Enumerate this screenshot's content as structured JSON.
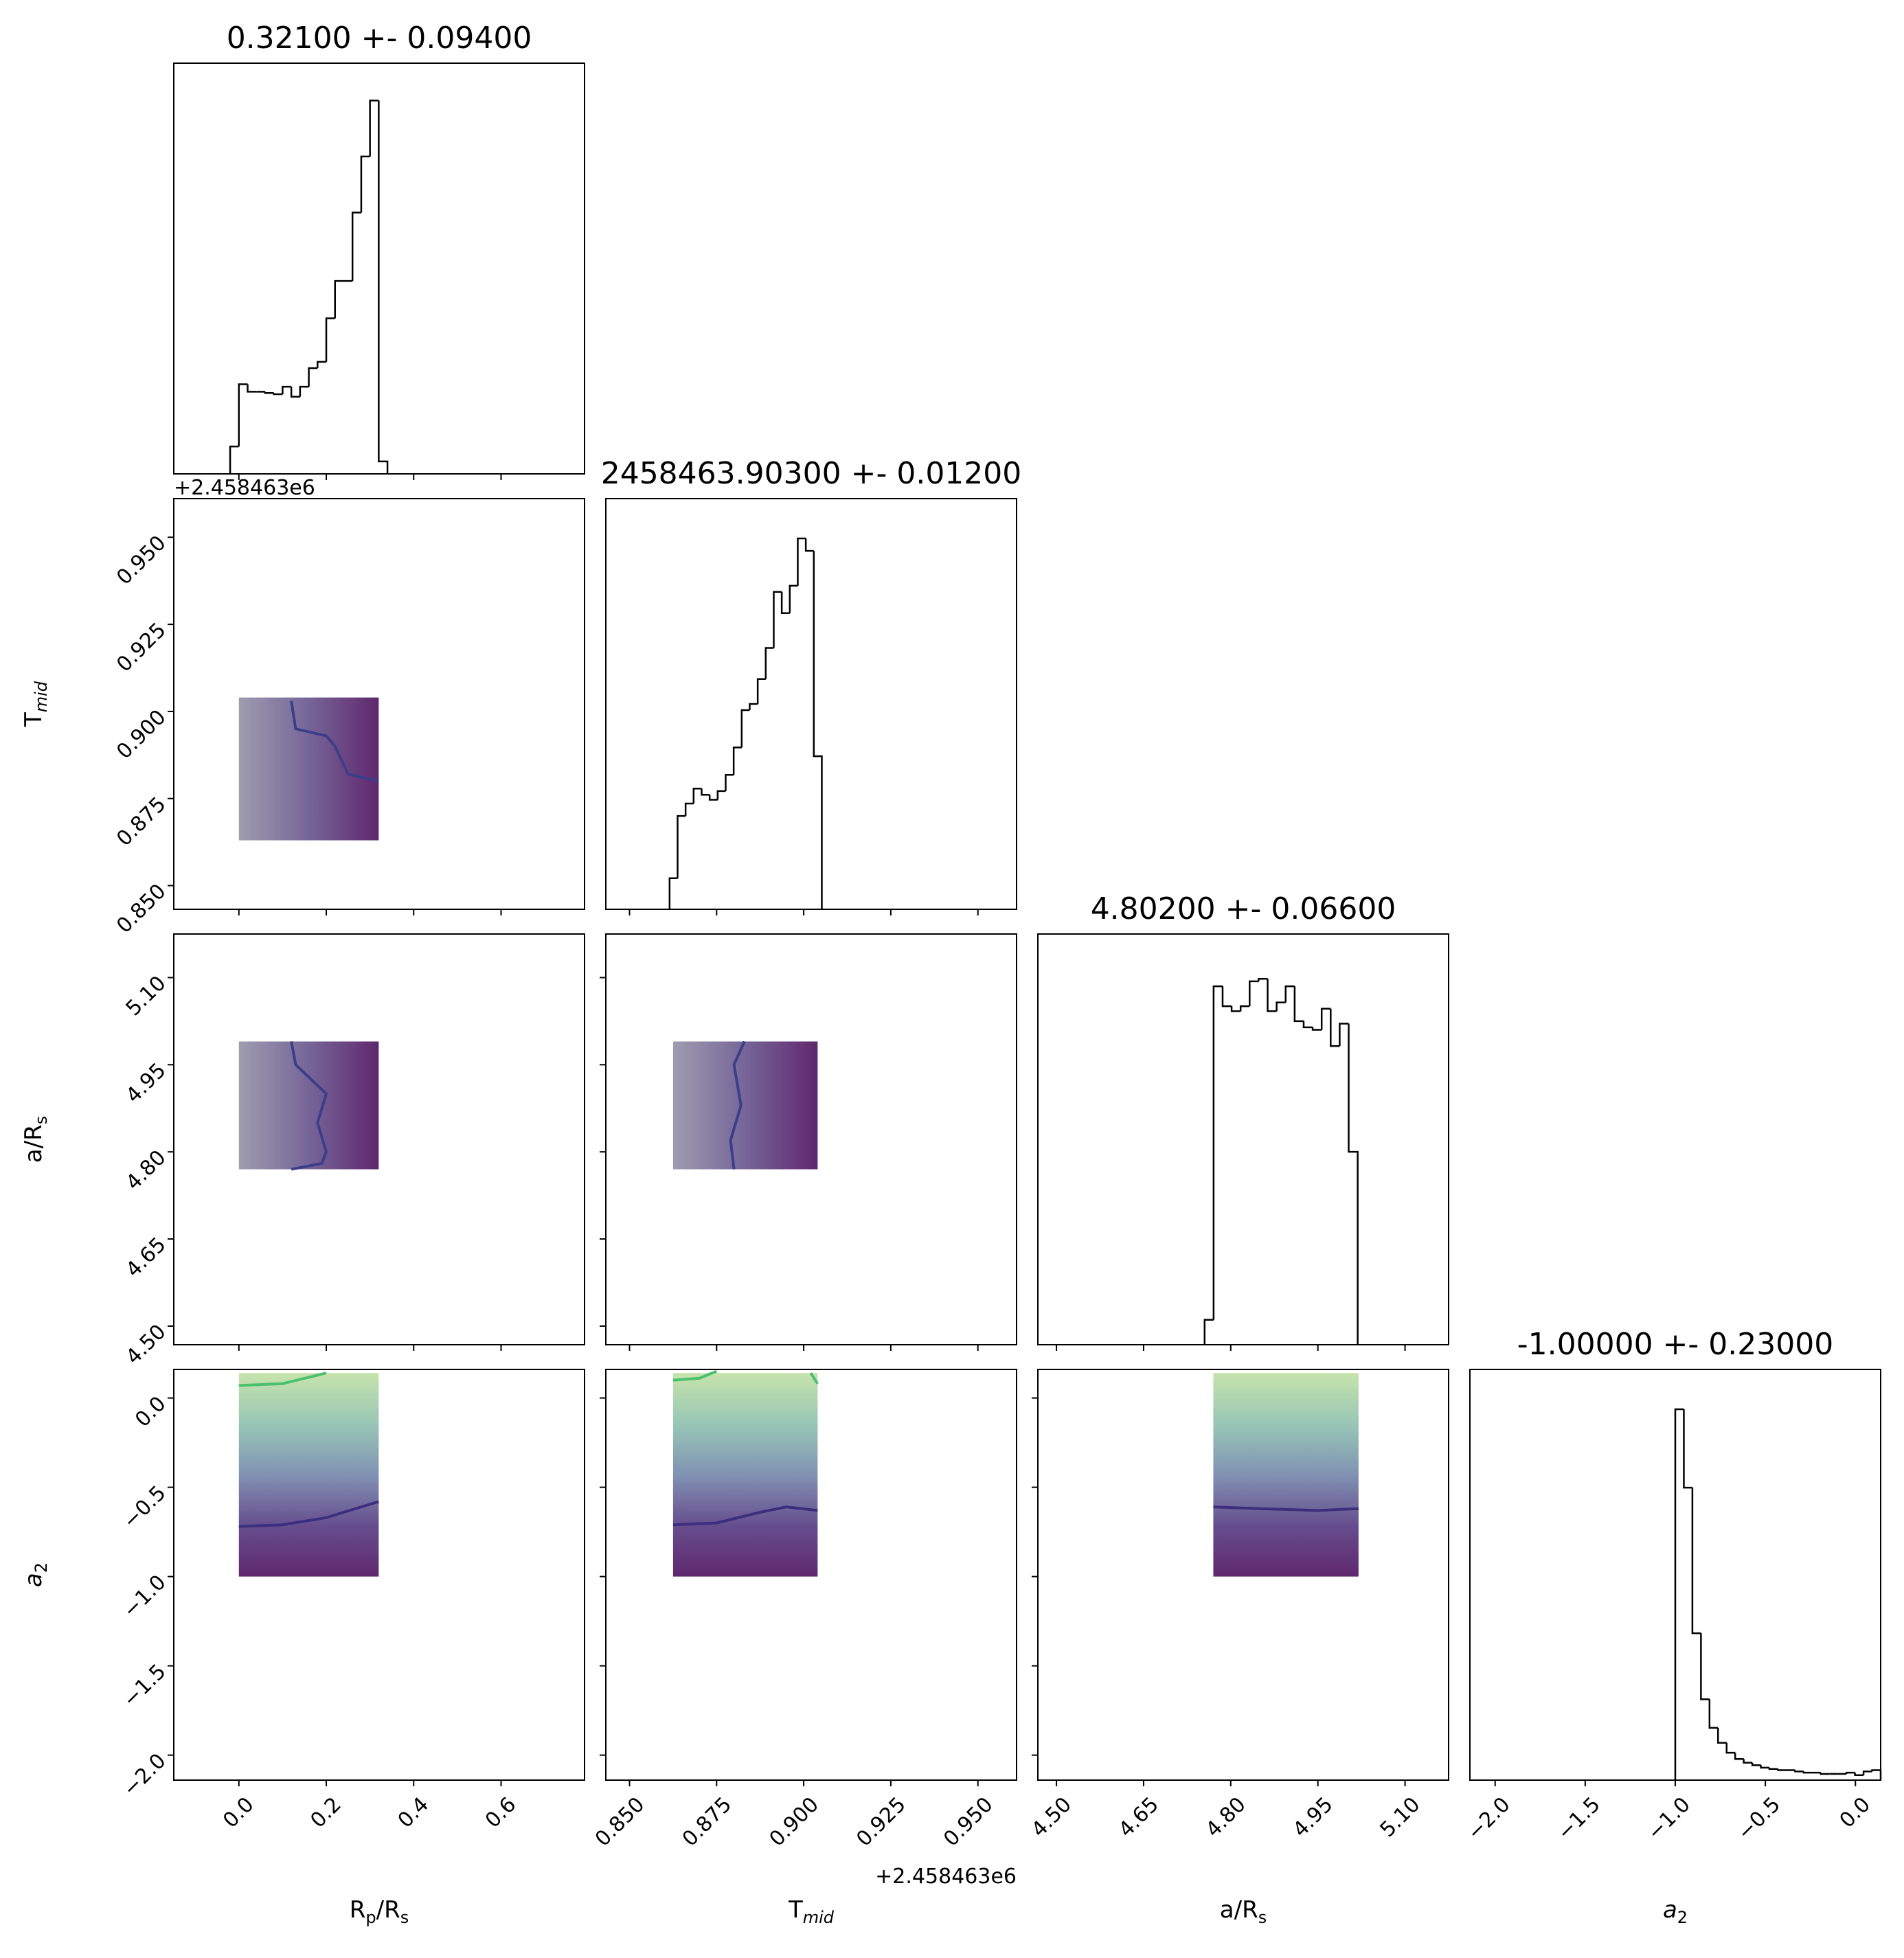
{
  "chart_data": [
    {
      "type": "histogram",
      "title": "0.32100 +- 0.09400",
      "xlim": [
        -0.149,
        0.791
      ],
      "ylim": [
        0,
        330
      ],
      "color": "#000000",
      "bins": [
        -0.02,
        0.0,
        0.02,
        0.04,
        0.06,
        0.08,
        0.1,
        0.12,
        0.14,
        0.16,
        0.18,
        0.2,
        0.22,
        0.24,
        0.26,
        0.28,
        0.3,
        0.32,
        0.34
      ],
      "values": [
        22,
        72,
        66,
        66,
        65,
        64,
        70,
        62,
        70,
        85,
        90,
        125,
        155,
        155,
        210,
        255,
        300,
        10
      ]
    },
    {
      "type": "scatter",
      "xlim": [
        -0.149,
        0.791
      ],
      "ylim": [
        0.8432,
        0.9611
      ],
      "yticks": [
        {
          "value": 0.85,
          "label": "0.850"
        },
        {
          "value": 0.875,
          "label": "0.875"
        },
        {
          "value": 0.9,
          "label": "0.900"
        },
        {
          "value": 0.925,
          "label": "0.925"
        },
        {
          "value": 0.95,
          "label": "0.950"
        }
      ],
      "y_offset_text": "+2.458463e6",
      "ylabel": [
        {
          "text": "T"
        },
        {
          "text": "mid",
          "sub": true,
          "italic": true
        }
      ],
      "extent_x": [
        0.0,
        0.32
      ],
      "extent_y": [
        0.863,
        0.904
      ],
      "cloud_direction": "x",
      "cloud_colors": [
        "#8d8ba3",
        "#5e4a86",
        "#440154"
      ],
      "contours": [
        {
          "color": "#3b3f8a",
          "x": [
            0.12,
            0.13,
            0.2,
            0.22,
            0.25,
            0.32
          ],
          "y": [
            0.903,
            0.895,
            0.893,
            0.89,
            0.882,
            0.88
          ]
        }
      ]
    },
    {
      "type": "histogram",
      "title": "2458463.90300 +- 0.01200",
      "xlim": [
        0.8432,
        0.9611
      ],
      "ylim": [
        0,
        330
      ],
      "color": "#000000",
      "bins": [
        0.8615,
        0.8638,
        0.8661,
        0.8684,
        0.8707,
        0.873,
        0.8753,
        0.8776,
        0.8799,
        0.8822,
        0.8845,
        0.8868,
        0.8891,
        0.8914,
        0.8937,
        0.896,
        0.8983,
        0.9006,
        0.9029,
        0.9052
      ],
      "values": [
        25,
        75,
        85,
        97,
        92,
        88,
        95,
        108,
        130,
        160,
        165,
        185,
        210,
        255,
        238,
        260,
        298,
        288,
        123
      ]
    },
    {
      "type": "scatter",
      "xlim": [
        -0.149,
        0.791
      ],
      "ylim": [
        4.468,
        5.175
      ],
      "yticks": [
        {
          "value": 4.5,
          "label": "4.50"
        },
        4.65,
        {
          "value": 4.8,
          "label": "4.80"
        },
        4.95,
        {
          "value": 5.1,
          "label": "5.10"
        }
      ],
      "ylabel": [
        {
          "text": "a/R"
        },
        {
          "text": "s",
          "sub": true
        }
      ],
      "extent_x": [
        0.0,
        0.32
      ],
      "extent_y": [
        4.77,
        4.99
      ],
      "cloud_direction": "x",
      "cloud_colors": [
        "#8d8ba3",
        "#5e4a86",
        "#440154"
      ],
      "contours": [
        {
          "color": "#3b3f8a",
          "x": [
            0.12,
            0.13,
            0.2,
            0.18,
            0.2,
            0.19,
            0.12
          ],
          "y": [
            4.99,
            4.95,
            4.9,
            4.85,
            4.8,
            4.78,
            4.77
          ]
        }
      ]
    },
    {
      "type": "scatter",
      "xlim": [
        0.8432,
        0.9611
      ],
      "ylim": [
        4.468,
        5.175
      ],
      "extent_x": [
        0.8625,
        0.904
      ],
      "extent_y": [
        4.77,
        4.99
      ],
      "cloud_direction": "x",
      "cloud_colors": [
        "#8d8ba3",
        "#5e4a86",
        "#440154"
      ],
      "contours": [
        {
          "color": "#3b3f8a",
          "x": [
            0.883,
            0.88,
            0.882,
            0.879,
            0.88
          ],
          "y": [
            4.99,
            4.95,
            4.88,
            4.82,
            4.77
          ]
        }
      ]
    },
    {
      "type": "histogram",
      "title": "4.80200 +- 0.06600",
      "xlim": [
        4.468,
        5.175
      ],
      "ylim": [
        0,
        330
      ],
      "color": "#000000",
      "bins": [
        4.755,
        4.7705,
        4.786,
        4.8015,
        4.817,
        4.8325,
        4.848,
        4.8635,
        4.879,
        4.8945,
        4.91,
        4.9255,
        4.941,
        4.9565,
        4.972,
        4.9875,
        5.003,
        5.0185
      ],
      "values": [
        20,
        288,
        272,
        268,
        272,
        292,
        294,
        268,
        275,
        288,
        260,
        255,
        253,
        270,
        240,
        258,
        155
      ]
    },
    {
      "type": "scatter",
      "xlim": [
        -0.149,
        0.791
      ],
      "ylim": [
        -2.14,
        0.16
      ],
      "xticks": [
        {
          "value": 0,
          "label": "0.0"
        },
        0.2,
        0.4,
        0.6
      ],
      "yticks": [
        {
          "value": -2,
          "label": "−2.0"
        },
        {
          "value": -1.5,
          "label": "−1.5"
        },
        {
          "value": -1,
          "label": "−1.0"
        },
        {
          "value": -0.5,
          "label": "−0.5"
        },
        {
          "value": 0,
          "label": "0.0"
        }
      ],
      "xlabel": [
        {
          "text": "R"
        },
        {
          "text": "p",
          "sub": true
        },
        {
          "text": "/R"
        },
        {
          "text": "s",
          "sub": true
        }
      ],
      "ylabel": [
        {
          "text": "a",
          "italic": true
        },
        {
          "text": "2",
          "sub": true
        }
      ],
      "extent_x": [
        0.0,
        0.32
      ],
      "extent_y": [
        -1.0,
        0.14
      ],
      "cloud_direction": "y",
      "cloud_colors": [
        "#440154",
        "#4b2f7a",
        "#6a7fa6",
        "#86bca9",
        "#bcdf9c"
      ],
      "contours": [
        {
          "color": "#3b2f7e",
          "x": [
            0.0,
            0.1,
            0.2,
            0.32
          ],
          "y": [
            -0.72,
            -0.71,
            -0.67,
            -0.58
          ]
        },
        {
          "color": "#4ac16d",
          "x": [
            0.0,
            0.1,
            0.2
          ],
          "y": [
            0.07,
            0.08,
            0.14
          ]
        }
      ]
    },
    {
      "type": "scatter",
      "xlim": [
        0.8432,
        0.9611
      ],
      "ylim": [
        -2.14,
        0.16
      ],
      "xticks": [
        {
          "value": 0.85,
          "label": "0.850"
        },
        {
          "value": 0.875,
          "label": "0.875"
        },
        {
          "value": 0.9,
          "label": "0.900"
        },
        {
          "value": 0.925,
          "label": "0.925"
        },
        {
          "value": 0.95,
          "label": "0.950"
        }
      ],
      "x_offset_text": "+2.458463e6",
      "xlabel": [
        {
          "text": "T"
        },
        {
          "text": "mid",
          "sub": true,
          "italic": true
        }
      ],
      "extent_x": [
        0.8625,
        0.904
      ],
      "extent_y": [
        -1.0,
        0.14
      ],
      "cloud_direction": "y",
      "cloud_colors": [
        "#440154",
        "#4b2f7a",
        "#6a7fa6",
        "#86bca9",
        "#bcdf9c"
      ],
      "contours": [
        {
          "color": "#3b2f7e",
          "x": [
            0.8625,
            0.875,
            0.8875,
            0.895,
            0.904
          ],
          "y": [
            -0.71,
            -0.7,
            -0.64,
            -0.61,
            -0.63
          ]
        },
        {
          "color": "#4ac16d",
          "x": [
            0.8625,
            0.87,
            0.875
          ],
          "y": [
            0.1,
            0.11,
            0.15
          ]
        },
        {
          "color": "#4ac16d",
          "x": [
            0.902,
            0.904
          ],
          "y": [
            0.14,
            0.08
          ]
        }
      ]
    },
    {
      "type": "scatter",
      "xlim": [
        4.468,
        5.175
      ],
      "ylim": [
        -2.14,
        0.16
      ],
      "xticks": [
        {
          "value": 4.5,
          "label": "4.50"
        },
        4.65,
        {
          "value": 4.8,
          "label": "4.80"
        },
        4.95,
        {
          "value": 5.1,
          "label": "5.10"
        }
      ],
      "xlabel": [
        {
          "text": "a/R"
        },
        {
          "text": "s",
          "sub": true
        }
      ],
      "extent_x": [
        4.77,
        5.02
      ],
      "extent_y": [
        -1.0,
        0.14
      ],
      "cloud_direction": "y",
      "cloud_colors": [
        "#440154",
        "#4b2f7a",
        "#6a7fa6",
        "#86bca9",
        "#bcdf9c"
      ],
      "contours": [
        {
          "color": "#3b2f7e",
          "x": [
            4.77,
            4.85,
            4.95,
            5.02
          ],
          "y": [
            -0.61,
            -0.62,
            -0.63,
            -0.62
          ]
        }
      ]
    },
    {
      "type": "histogram",
      "title": "-1.00000 +- 0.23000",
      "xlim": [
        -2.14,
        0.14
      ],
      "ylim": [
        0,
        330
      ],
      "color": "#000000",
      "xticks": [
        {
          "value": -2,
          "label": "−2.0"
        },
        {
          "value": -1.5,
          "label": "−1.5"
        },
        {
          "value": -1,
          "label": "−1.0"
        },
        {
          "value": -0.5,
          "label": "−0.5"
        },
        {
          "value": 0,
          "label": "0.0"
        }
      ],
      "xlabel": [
        {
          "text": "a",
          "italic": true
        },
        {
          "text": "2",
          "sub": true
        }
      ],
      "bins": [
        -1.0,
        -0.9525,
        -0.905,
        -0.8575,
        -0.81,
        -0.7625,
        -0.715,
        -0.6675,
        -0.62,
        -0.5725,
        -0.525,
        -0.4775,
        -0.43,
        -0.3825,
        -0.335,
        -0.2875,
        -0.24,
        -0.1925,
        -0.145,
        -0.0975,
        -0.05,
        -0.0025,
        0.045,
        0.0925,
        0.14
      ],
      "values": [
        298,
        235,
        118,
        65,
        42,
        30,
        22,
        17,
        14,
        12,
        10,
        9,
        8,
        8,
        7,
        6,
        6,
        5,
        5,
        5,
        6,
        4,
        7,
        8
      ]
    }
  ]
}
